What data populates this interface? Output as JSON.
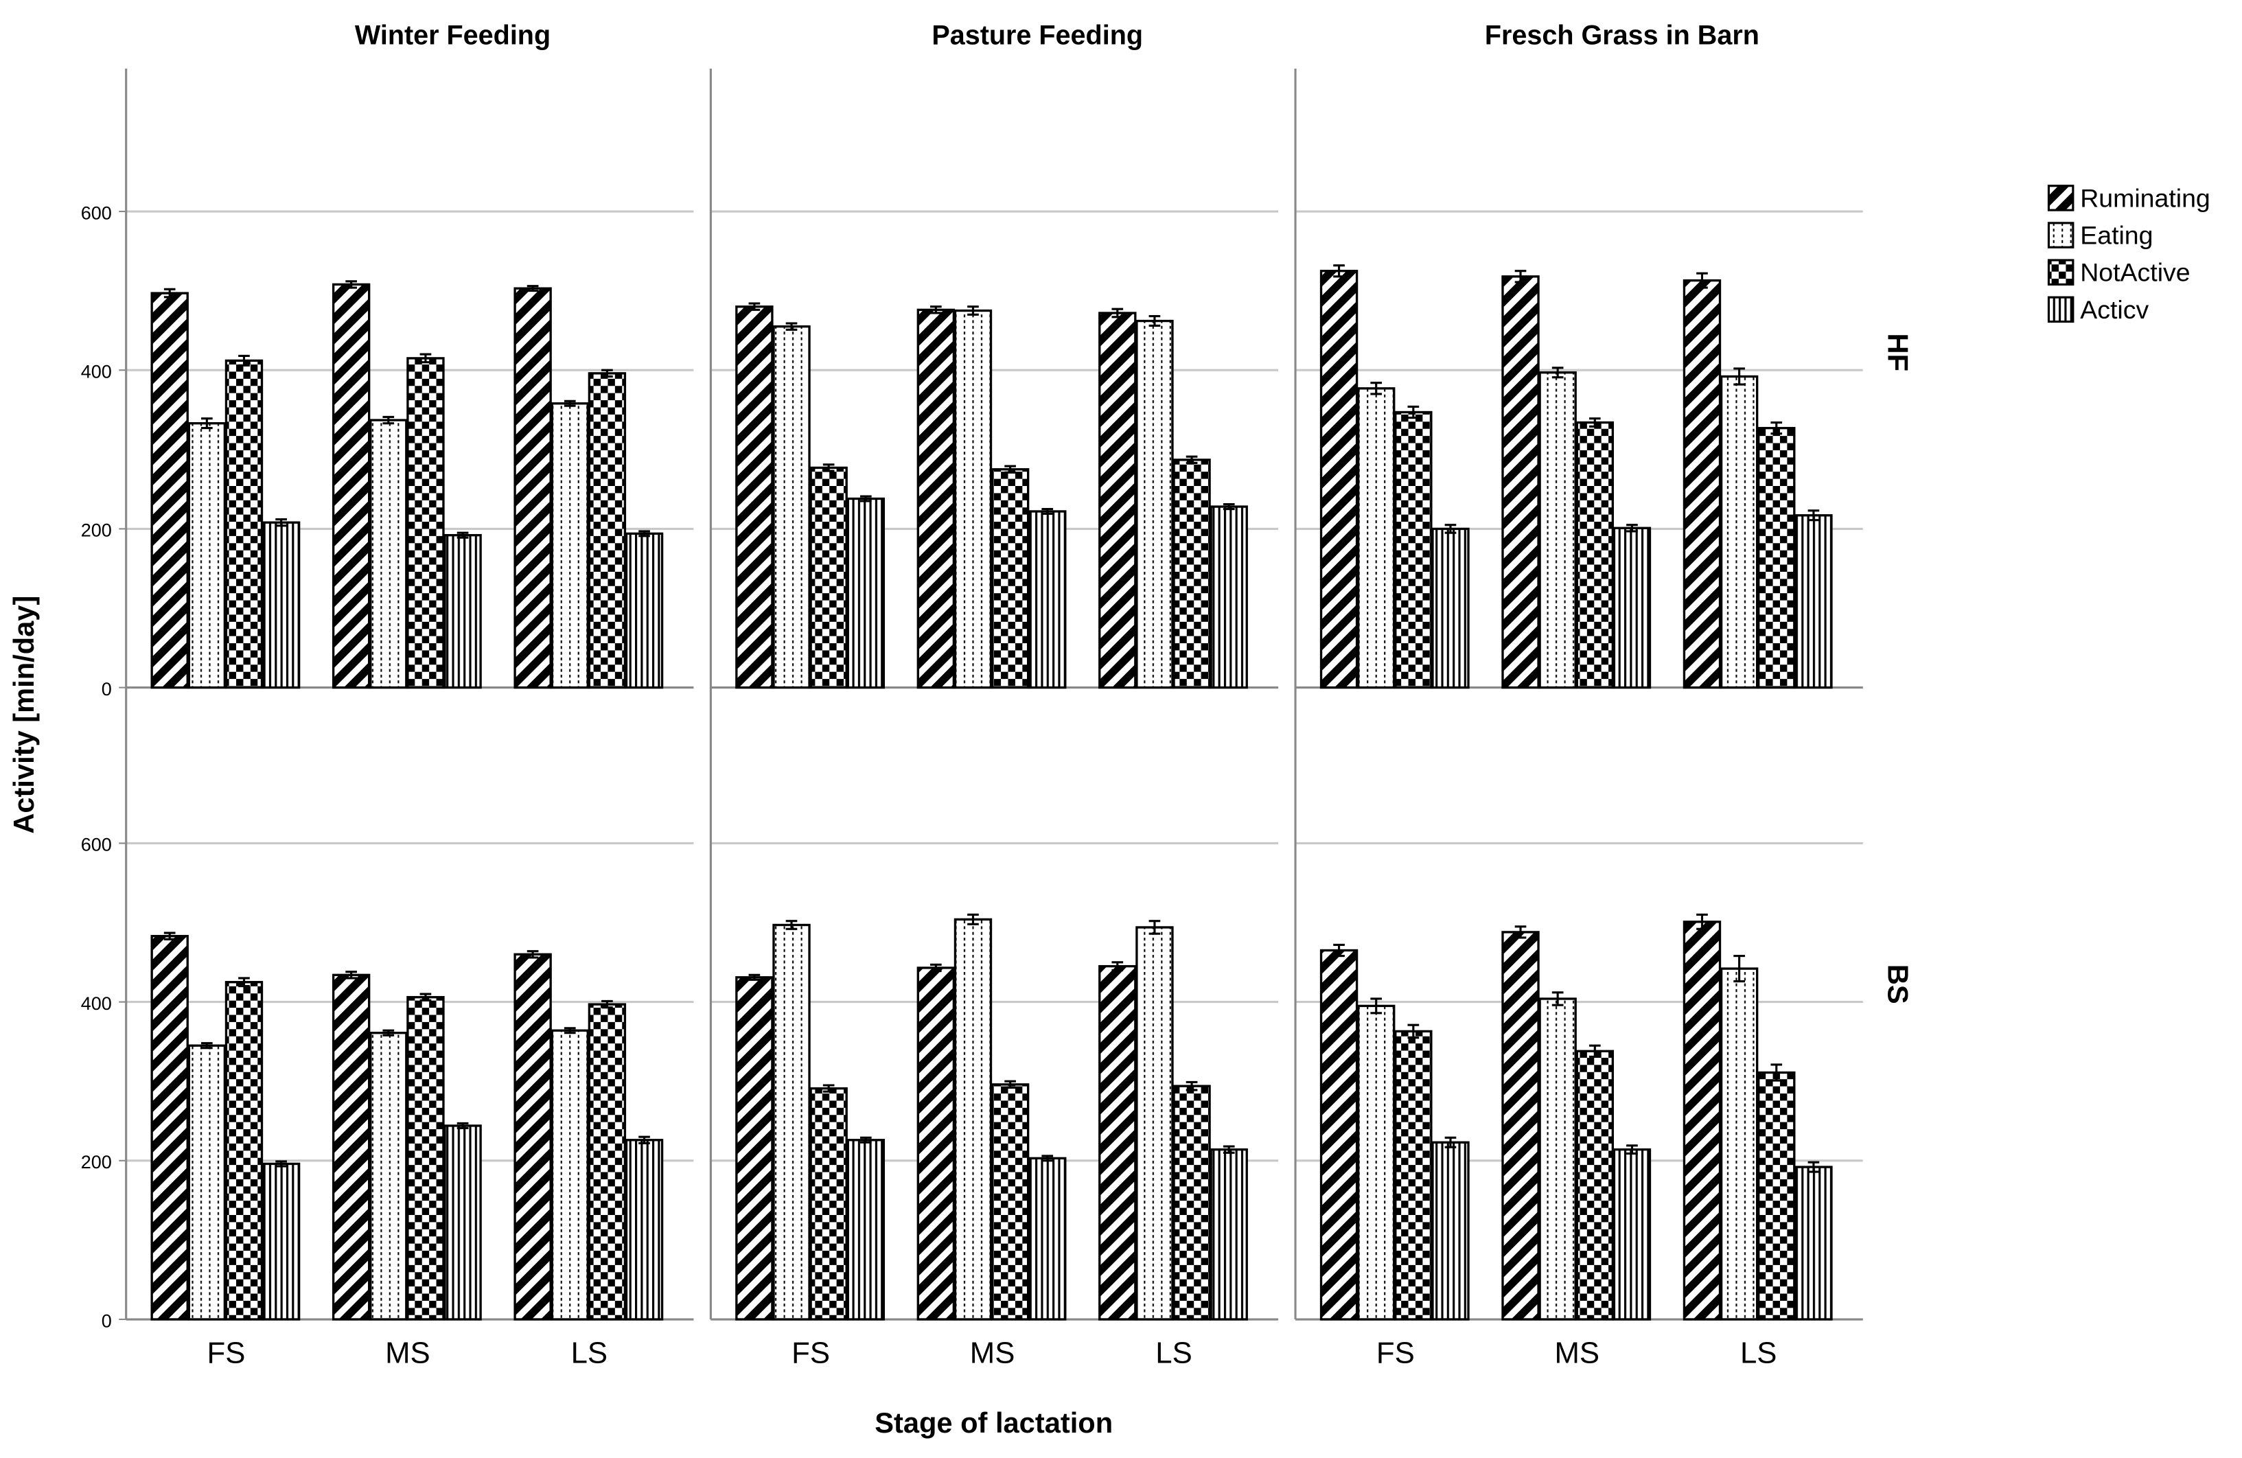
{
  "chart_data": {
    "type": "bar",
    "columns": [
      "Winter Feeding",
      "Pasture Feeding",
      "Fresch Grass in Barn"
    ],
    "rows": [
      "HF",
      "BS"
    ],
    "xlabel": "Stage of lactation",
    "ylabel": "Activity [min/day]",
    "categories": [
      "FS",
      "MS",
      "LS"
    ],
    "ylim": [
      0,
      780
    ],
    "yticks": [
      0,
      200,
      400,
      600
    ],
    "grid": true,
    "legend": "right",
    "series": [
      {
        "name": "Ruminating",
        "color": "#000000",
        "pattern": "hatch"
      },
      {
        "name": "Eating",
        "color": "#000000",
        "pattern": "dots"
      },
      {
        "name": "NotActive",
        "color": "#000000",
        "pattern": "checks"
      },
      {
        "name": "Acticv",
        "color": "#000000",
        "pattern": "vlines"
      }
    ],
    "panels": [
      {
        "values": [
          [
            497,
            508,
            503
          ],
          [
            333,
            337,
            358
          ],
          [
            412,
            415,
            396
          ],
          [
            208,
            192,
            194
          ]
        ],
        "errors": [
          [
            5,
            4,
            3
          ],
          [
            6,
            4,
            3
          ],
          [
            6,
            5,
            4
          ],
          [
            4,
            3,
            3
          ]
        ]
      },
      {
        "values": [
          [
            480,
            476,
            472
          ],
          [
            455,
            475,
            462
          ],
          [
            277,
            275,
            287
          ],
          [
            238,
            222,
            228
          ]
        ],
        "errors": [
          [
            4,
            4,
            5
          ],
          [
            4,
            5,
            6
          ],
          [
            4,
            4,
            4
          ],
          [
            3,
            3,
            3
          ]
        ]
      },
      {
        "values": [
          [
            525,
            518,
            513
          ],
          [
            377,
            397,
            392
          ],
          [
            347,
            334,
            327
          ],
          [
            200,
            201,
            217
          ]
        ],
        "errors": [
          [
            7,
            7,
            9
          ],
          [
            7,
            6,
            10
          ],
          [
            7,
            5,
            7
          ],
          [
            5,
            4,
            6
          ]
        ]
      },
      {
        "values": [
          [
            483,
            434,
            460
          ],
          [
            345,
            361,
            364
          ],
          [
            425,
            406,
            397
          ],
          [
            196,
            244,
            226
          ]
        ],
        "errors": [
          [
            4,
            4,
            4
          ],
          [
            3,
            3,
            3
          ],
          [
            5,
            4,
            4
          ],
          [
            3,
            3,
            4
          ]
        ]
      },
      {
        "values": [
          [
            431,
            443,
            445
          ],
          [
            497,
            504,
            494
          ],
          [
            291,
            296,
            294
          ],
          [
            226,
            203,
            214
          ]
        ],
        "errors": [
          [
            3,
            4,
            5
          ],
          [
            5,
            6,
            8
          ],
          [
            4,
            4,
            5
          ],
          [
            3,
            3,
            4
          ]
        ]
      },
      {
        "values": [
          [
            465,
            488,
            501
          ],
          [
            395,
            404,
            442
          ],
          [
            363,
            338,
            311
          ],
          [
            223,
            214,
            192
          ]
        ],
        "errors": [
          [
            7,
            7,
            9
          ],
          [
            9,
            8,
            16
          ],
          [
            8,
            7,
            10
          ],
          [
            6,
            5,
            6
          ]
        ]
      }
    ]
  }
}
